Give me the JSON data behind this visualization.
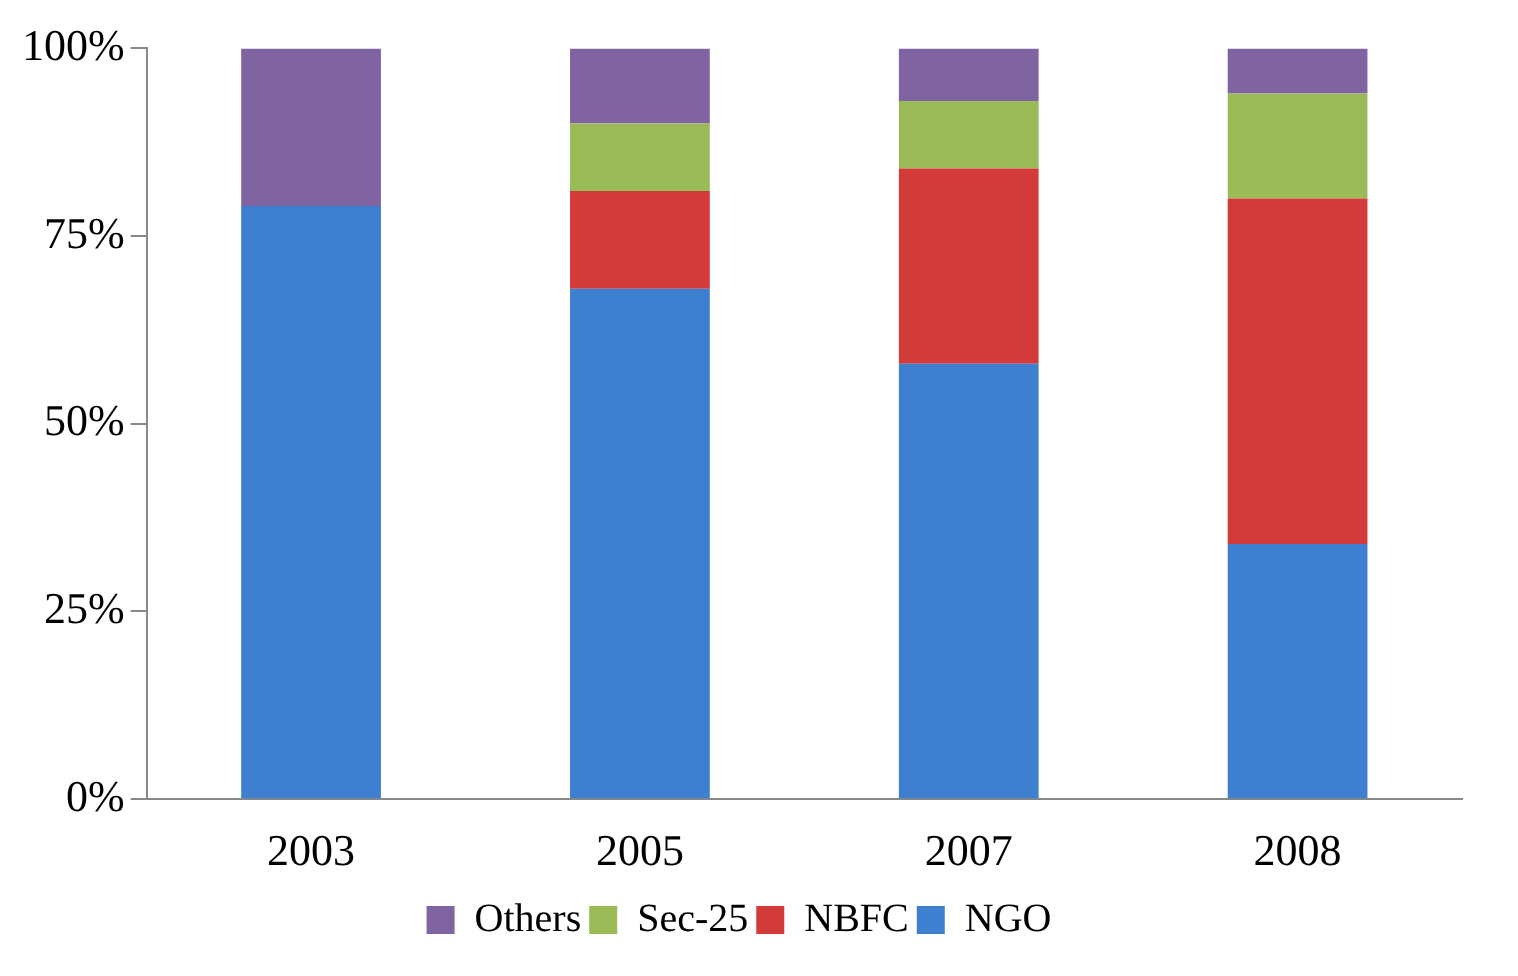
{
  "chart_data": {
    "type": "bar",
    "stacked": true,
    "categories": [
      "2003",
      "2005",
      "2007",
      "2008"
    ],
    "series": [
      {
        "name": "NGO",
        "color": "#3f7fd0",
        "values": [
          79,
          68,
          58,
          34
        ]
      },
      {
        "name": "NBFC",
        "color": "#d33b3b",
        "values": [
          0,
          13,
          26,
          46
        ]
      },
      {
        "name": "Sec-25",
        "color": "#9bbb59",
        "values": [
          0,
          9,
          9,
          14
        ]
      },
      {
        "name": "Others",
        "color": "#8064a2",
        "values": [
          21,
          10,
          7,
          6
        ]
      }
    ],
    "ylim": [
      0,
      100
    ],
    "yticks": [
      {
        "value": 0,
        "label": "0%"
      },
      {
        "value": 25,
        "label": "25%"
      },
      {
        "value": 50,
        "label": "50%"
      },
      {
        "value": 75,
        "label": "75%"
      },
      {
        "value": 100,
        "label": "100%"
      }
    ],
    "grid": false,
    "legend": "bottom"
  }
}
